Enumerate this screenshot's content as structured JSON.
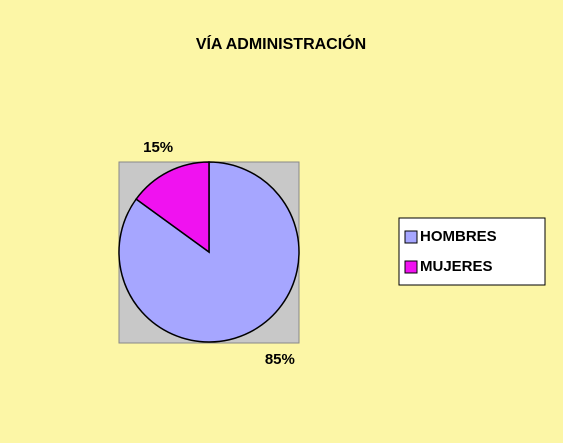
{
  "chart_data": {
    "type": "pie",
    "title": "VÍA ADMINISTRACIÓN",
    "categories": [
      "HOMBRES",
      "MUJERES"
    ],
    "values": [
      85,
      15
    ],
    "value_labels": [
      "85%",
      "15%"
    ],
    "colors": [
      "#a6a6ff",
      "#f012f0"
    ],
    "legend": "right"
  }
}
